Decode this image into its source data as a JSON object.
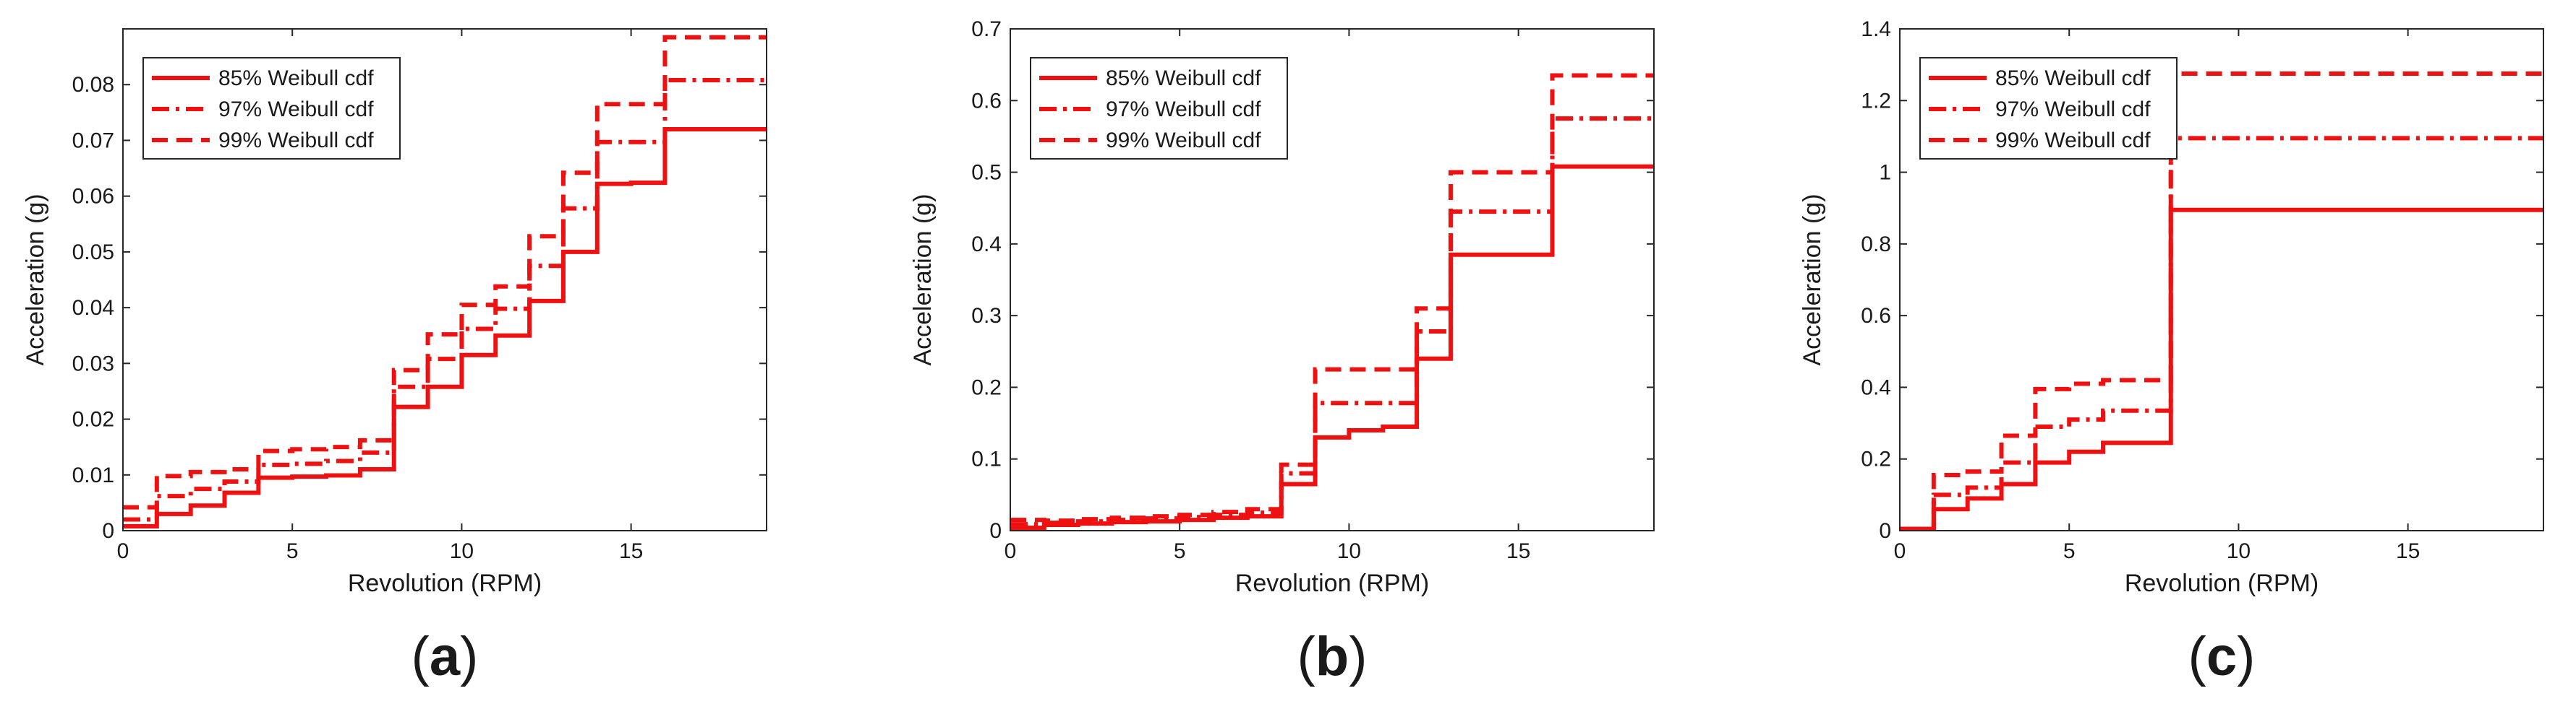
{
  "colors": {
    "series": "#ee1111",
    "axis": "#262626",
    "background": "#ffffff"
  },
  "chart_data": [
    {
      "type": "line",
      "panel_label": "a",
      "xlabel": "Revolution (RPM)",
      "ylabel": "Acceleration (g)",
      "xlim": [
        0,
        19
      ],
      "ylim": [
        0,
        0.09
      ],
      "xticks": [
        0,
        5,
        10,
        15
      ],
      "yticks": [
        0,
        0.01,
        0.02,
        0.03,
        0.04,
        0.05,
        0.06,
        0.07,
        0.08
      ],
      "legend_position": "top-left",
      "x": [
        0,
        1,
        2,
        3,
        4,
        5,
        6,
        7,
        8,
        9,
        10,
        11,
        12,
        13,
        14,
        15,
        16,
        17,
        18,
        19
      ],
      "series": [
        {
          "name": "85% Weibull cdf",
          "style": "solid",
          "values": [
            0.0008,
            0.003,
            0.0045,
            0.0068,
            0.0095,
            0.0097,
            0.0099,
            0.011,
            0.0222,
            0.0258,
            0.0315,
            0.035,
            0.0412,
            0.05,
            0.0622,
            0.0624,
            0.072,
            0.072,
            0.072,
            0.072
          ]
        },
        {
          "name": "97% Weibull cdf",
          "style": "dashdot",
          "values": [
            0.002,
            0.0062,
            0.0075,
            0.0088,
            0.0118,
            0.012,
            0.0125,
            0.014,
            0.0258,
            0.0308,
            0.0362,
            0.0398,
            0.0475,
            0.0578,
            0.0697,
            0.0697,
            0.0808,
            0.0808,
            0.0808,
            0.0808
          ]
        },
        {
          "name": "99% Weibull cdf",
          "style": "dashed",
          "values": [
            0.0042,
            0.0098,
            0.0105,
            0.011,
            0.0143,
            0.0146,
            0.015,
            0.0162,
            0.0288,
            0.0352,
            0.0405,
            0.0438,
            0.0528,
            0.0642,
            0.0765,
            0.0765,
            0.0885,
            0.0885,
            0.0885,
            0.0885
          ]
        }
      ]
    },
    {
      "type": "line",
      "panel_label": "b",
      "xlabel": "Revolution (RPM)",
      "ylabel": "Acceleration (g)",
      "xlim": [
        0,
        19
      ],
      "ylim": [
        0,
        0.7
      ],
      "xticks": [
        0,
        5,
        10,
        15
      ],
      "yticks": [
        0,
        0.1,
        0.2,
        0.3,
        0.4,
        0.5,
        0.6,
        0.7
      ],
      "legend_position": "top-left",
      "x": [
        0,
        1,
        2,
        3,
        4,
        5,
        6,
        7,
        8,
        9,
        10,
        11,
        12,
        13,
        14,
        15,
        16,
        17,
        18,
        19
      ],
      "series": [
        {
          "name": "85% Weibull cdf",
          "style": "solid",
          "values": [
            0.004,
            0.008,
            0.01,
            0.012,
            0.013,
            0.015,
            0.018,
            0.02,
            0.065,
            0.13,
            0.14,
            0.145,
            0.24,
            0.385,
            0.385,
            0.385,
            0.508,
            0.508,
            0.508,
            0.508
          ]
        },
        {
          "name": "97% Weibull cdf",
          "style": "dashdot",
          "values": [
            0.009,
            0.011,
            0.013,
            0.015,
            0.017,
            0.019,
            0.022,
            0.025,
            0.08,
            0.178,
            0.178,
            0.178,
            0.278,
            0.445,
            0.445,
            0.445,
            0.575,
            0.575,
            0.575,
            0.575
          ]
        },
        {
          "name": "99% Weibull cdf",
          "style": "dashed",
          "values": [
            0.015,
            0.014,
            0.016,
            0.018,
            0.02,
            0.022,
            0.026,
            0.03,
            0.092,
            0.225,
            0.225,
            0.225,
            0.31,
            0.5,
            0.5,
            0.5,
            0.635,
            0.635,
            0.635,
            0.635
          ]
        }
      ]
    },
    {
      "type": "line",
      "panel_label": "c",
      "xlabel": "Revolution (RPM)",
      "ylabel": "Acceleration (g)",
      "xlim": [
        0,
        19
      ],
      "ylim": [
        0,
        1.4
      ],
      "xticks": [
        0,
        5,
        10,
        15
      ],
      "yticks": [
        0,
        0.2,
        0.4,
        0.6,
        0.8,
        1,
        1.2,
        1.4
      ],
      "legend_position": "top-left",
      "x": [
        0,
        1,
        2,
        3,
        4,
        5,
        6,
        7,
        8,
        9,
        10,
        11,
        12,
        13,
        14,
        15,
        16,
        17,
        18,
        19
      ],
      "series": [
        {
          "name": "85% Weibull cdf",
          "style": "solid",
          "values": [
            0.005,
            0.06,
            0.09,
            0.13,
            0.19,
            0.22,
            0.245,
            0.245,
            0.895,
            0.895,
            0.895,
            0.895,
            0.895,
            0.895,
            0.895,
            0.895,
            0.895,
            0.895,
            0.895,
            0.895
          ]
        },
        {
          "name": "97% Weibull cdf",
          "style": "dashdot",
          "values": [
            0.005,
            0.1,
            0.12,
            0.19,
            0.29,
            0.31,
            0.335,
            0.335,
            1.095,
            1.095,
            1.095,
            1.095,
            1.095,
            1.095,
            1.095,
            1.095,
            1.095,
            1.095,
            1.095,
            1.095
          ]
        },
        {
          "name": "99% Weibull cdf",
          "style": "dashed",
          "values": [
            0.005,
            0.155,
            0.165,
            0.265,
            0.395,
            0.41,
            0.42,
            0.42,
            1.275,
            1.275,
            1.275,
            1.275,
            1.275,
            1.275,
            1.275,
            1.275,
            1.275,
            1.275,
            1.275,
            1.275
          ]
        }
      ]
    }
  ]
}
